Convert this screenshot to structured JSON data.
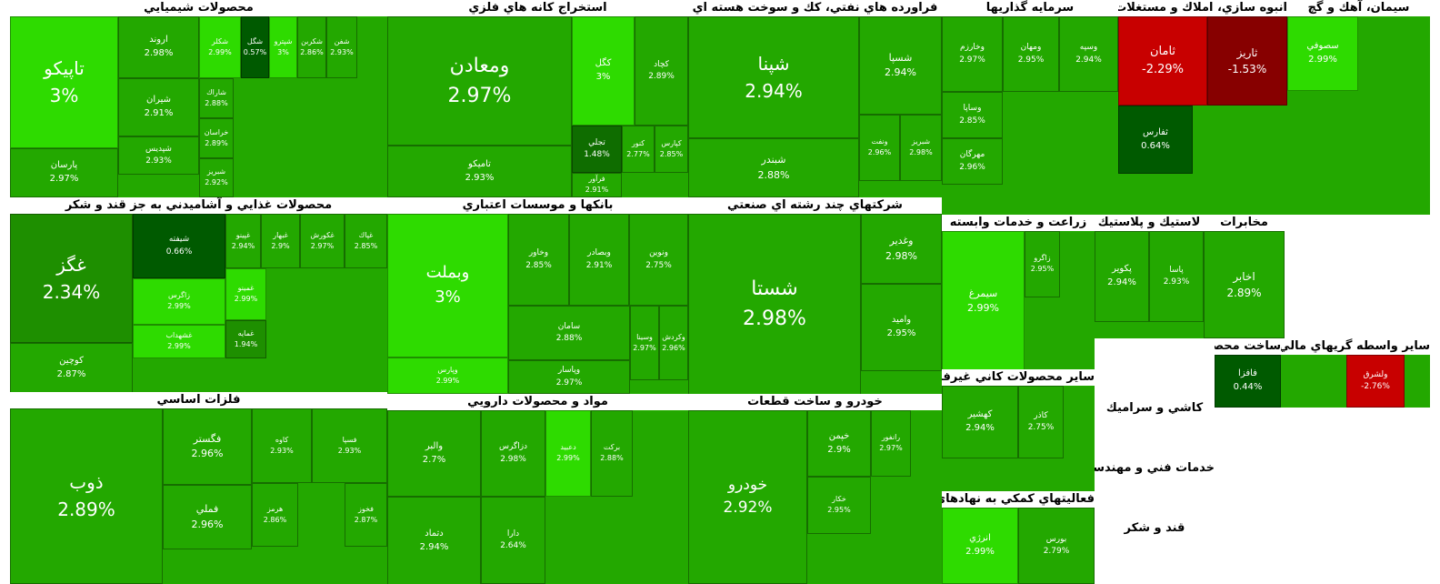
{
  "chart_data": {
    "type": "treemap",
    "value_unit": "%",
    "colors": {
      "up_strong": "#2edb00",
      "up": "#23a800",
      "up_mid": "#1e8f00",
      "up_weak": "#0f6d00",
      "up_min": "#005a00",
      "down": "#c80000",
      "down_deep": "#870000"
    },
    "sectors": [
      {
        "name": "محصولات شيميايي",
        "items": [
          {
            "symbol": "تاپيكو",
            "change": 3
          },
          {
            "symbol": "پارسان",
            "change": 2.97
          },
          {
            "symbol": "اروند",
            "change": 2.98
          },
          {
            "symbol": "شيران",
            "change": 2.91
          },
          {
            "symbol": "شپديس",
            "change": 2.93
          },
          {
            "symbol": "شكلر",
            "change": 2.99
          },
          {
            "symbol": "شگل",
            "change": 0.57
          },
          {
            "symbol": "شپترو",
            "change": 3
          },
          {
            "symbol": "شكربن",
            "change": 2.86
          },
          {
            "symbol": "شفن",
            "change": 2.93
          },
          {
            "symbol": "شاراك",
            "change": 2.88
          },
          {
            "symbol": "خراسان",
            "change": 2.89
          },
          {
            "symbol": "شبريز",
            "change": 2.92
          }
        ]
      },
      {
        "name": "استخراج كانه هاي فلزي",
        "items": [
          {
            "symbol": "ومعادن",
            "change": 2.97
          },
          {
            "symbol": "تاميكو",
            "change": 2.93
          },
          {
            "symbol": "كگل",
            "change": 3
          },
          {
            "symbol": "كچاد",
            "change": 2.89
          },
          {
            "symbol": "تجلي",
            "change": 1.48
          },
          {
            "symbol": "كنور",
            "change": 2.77
          },
          {
            "symbol": "كپارس",
            "change": 2.85
          },
          {
            "symbol": "فرآور",
            "change": 2.91
          }
        ]
      },
      {
        "name": "فراورده هاي نفتي، كك و سوخت هسته اي",
        "items": [
          {
            "symbol": "شپنا",
            "change": 2.94
          },
          {
            "symbol": "شبندر",
            "change": 2.88
          },
          {
            "symbol": "شسپا",
            "change": 2.94
          },
          {
            "symbol": "ونفت",
            "change": 2.96
          },
          {
            "symbol": "شبريز",
            "change": 2.98
          }
        ]
      },
      {
        "name": "سرمايه گذاريها",
        "items": [
          {
            "symbol": "وخارزم",
            "change": 2.97
          },
          {
            "symbol": "ومهان",
            "change": 2.95
          },
          {
            "symbol": "وسپه",
            "change": 2.94
          },
          {
            "symbol": "وساپا",
            "change": 2.85
          },
          {
            "symbol": "مهرگان",
            "change": 2.96
          }
        ]
      },
      {
        "name": "انبوه سازي، املاك و مستغلات",
        "items": [
          {
            "symbol": "ثامان",
            "change": -2.29
          },
          {
            "symbol": "ثاريز",
            "change": -1.53
          },
          {
            "symbol": "ثفارس",
            "change": 0.64
          }
        ]
      },
      {
        "name": "سيمان، آهك و گچ",
        "items": [
          {
            "symbol": "سصوفي",
            "change": 2.99
          }
        ]
      },
      {
        "name": "محصولات غذايي و آشاميدني به جز قند و شكر",
        "items": [
          {
            "symbol": "غگز",
            "change": 2.34
          },
          {
            "symbol": "كوچين",
            "change": 2.87
          },
          {
            "symbol": "شيفته",
            "change": 0.66
          },
          {
            "symbol": "غپينو",
            "change": 2.94
          },
          {
            "symbol": "غبهار",
            "change": 2.9
          },
          {
            "symbol": "غكورش",
            "change": 2.97
          },
          {
            "symbol": "غپاك",
            "change": 2.85
          },
          {
            "symbol": "زاگرس",
            "change": 2.99
          },
          {
            "symbol": "غمينو",
            "change": 2.99
          },
          {
            "symbol": "غشهداب",
            "change": 2.99
          },
          {
            "symbol": "غمايه",
            "change": 1.94
          }
        ]
      },
      {
        "name": "بانكها و موسسات اعتباري",
        "items": [
          {
            "symbol": "وبملت",
            "change": 3
          },
          {
            "symbol": "وپارس",
            "change": 2.99
          },
          {
            "symbol": "وخاور",
            "change": 2.85
          },
          {
            "symbol": "وبصادر",
            "change": 2.91
          },
          {
            "symbol": "ونوين",
            "change": 2.75
          },
          {
            "symbol": "سامان",
            "change": 2.88
          },
          {
            "symbol": "وسينا",
            "change": 2.97
          },
          {
            "symbol": "وكردش",
            "change": 2.96
          },
          {
            "symbol": "وپاسار",
            "change": 2.97
          }
        ]
      },
      {
        "name": "شركتهاي چند رشته اي صنعتي",
        "items": [
          {
            "symbol": "شستا",
            "change": 2.98
          },
          {
            "symbol": "وغدير",
            "change": 2.98
          },
          {
            "symbol": "واميد",
            "change": 2.95
          }
        ]
      },
      {
        "name": "زراعت و خدمات وابسته",
        "items": [
          {
            "symbol": "سيمرغ",
            "change": 2.99
          },
          {
            "symbol": "زاگرو",
            "change": 2.95
          }
        ]
      },
      {
        "name": "لاستيك و پلاستيك",
        "items": [
          {
            "symbol": "پكوير",
            "change": 2.94
          },
          {
            "symbol": "پاسا",
            "change": 2.93
          }
        ]
      },
      {
        "name": "مخابرات",
        "items": [
          {
            "symbol": "اخابر",
            "change": 2.89
          }
        ]
      },
      {
        "name": "فلزات اساسي",
        "items": [
          {
            "symbol": "ذوب",
            "change": 2.89
          },
          {
            "symbol": "فگستر",
            "change": 2.96
          },
          {
            "symbol": "فملي",
            "change": 2.96
          },
          {
            "symbol": "كاوه",
            "change": 2.93
          },
          {
            "symbol": "فسپا",
            "change": 2.93
          },
          {
            "symbol": "فخوز",
            "change": 2.87
          },
          {
            "symbol": "هرمز",
            "change": 2.86
          }
        ]
      },
      {
        "name": "مواد و محصولات دارويي",
        "items": [
          {
            "symbol": "والبر",
            "change": 2.7
          },
          {
            "symbol": "دزاگرس",
            "change": 2.98
          },
          {
            "symbol": "دعبيد",
            "change": 2.99
          },
          {
            "symbol": "دتماد",
            "change": 2.94
          },
          {
            "symbol": "دارا",
            "change": 2.64
          },
          {
            "symbol": "بركت",
            "change": 2.88
          }
        ]
      },
      {
        "name": "خودرو و ساخت قطعات",
        "items": [
          {
            "symbol": "خودرو",
            "change": 2.92
          },
          {
            "symbol": "خپمن",
            "change": 2.9
          },
          {
            "symbol": "رانفور",
            "change": 2.97
          },
          {
            "symbol": "خكار",
            "change": 2.95
          }
        ]
      },
      {
        "name": "ساير محصولات كاني غيرفلزي",
        "items": [
          {
            "symbol": "كهشير",
            "change": 2.94
          },
          {
            "symbol": "كاذر",
            "change": 2.75
          }
        ]
      },
      {
        "name": "ساخت محصولات فلزي",
        "items": [
          {
            "symbol": "فافزا",
            "change": 0.44
          }
        ]
      },
      {
        "name": "ساير واسطه گريهاي مالي",
        "items": [
          {
            "symbol": "ولشرق",
            "change": -2.76
          }
        ]
      },
      {
        "name": "فعاليتهاي كمكي به نهادهاي مالي واسط",
        "items": [
          {
            "symbol": "انرژي",
            "change": 2.99
          },
          {
            "symbol": "بورس",
            "change": 2.79
          }
        ]
      },
      {
        "name": "قند و شكر",
        "items": []
      },
      {
        "name": "خدمات فني و مهندسي",
        "items": []
      },
      {
        "name": "كاشي و سراميك",
        "items": []
      }
    ]
  }
}
